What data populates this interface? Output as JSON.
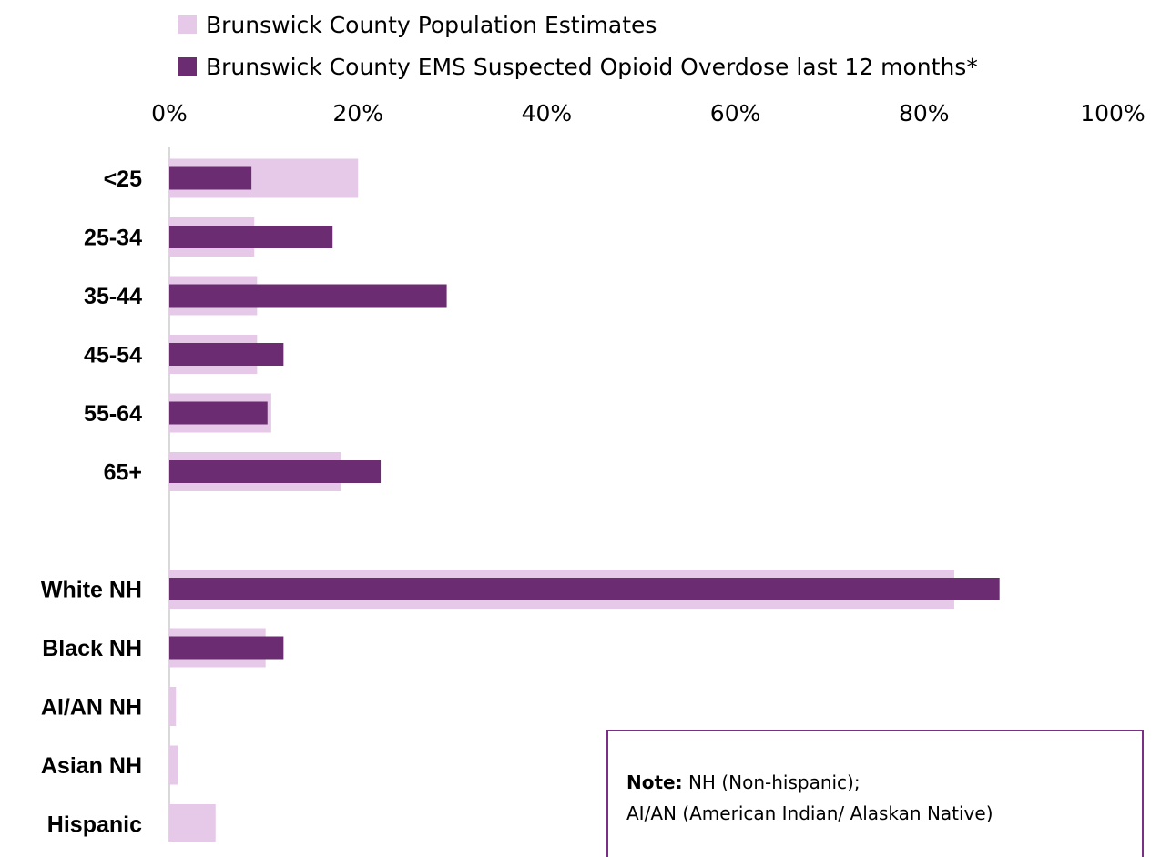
{
  "chart_data": {
    "type": "bar",
    "orientation": "horizontal",
    "categories": [
      "<25",
      "25-34",
      "35-44",
      "45-54",
      "55-64",
      "65+",
      "",
      "White NH",
      "Black NH",
      "AI/AN NH",
      "Asian NH",
      "Hispanic"
    ],
    "series": [
      {
        "name": "Brunswick County Population Estimates",
        "color": "#e6c9e8",
        "values": [
          20,
          9,
          9.3,
          9.3,
          10.8,
          18.2,
          null,
          83.2,
          10.2,
          0.7,
          0.9,
          4.9
        ]
      },
      {
        "name": "Brunswick County EMS Suspected Opioid Overdose last 12 months*",
        "color": "#6b2c72",
        "values": [
          8.7,
          17.3,
          29.4,
          12.1,
          10.4,
          22.4,
          null,
          88,
          12.1,
          0,
          0,
          0
        ]
      }
    ],
    "xlim": [
      0,
      100
    ],
    "x_ticks": [
      "0%",
      "20%",
      "40%",
      "60%",
      "80%",
      "100%"
    ],
    "legend_position": "top"
  },
  "note": {
    "label": "Note:",
    "line1_rest": " NH (Non-hispanic);",
    "line2": "AI/AN (American Indian/ Alaskan Native)"
  }
}
